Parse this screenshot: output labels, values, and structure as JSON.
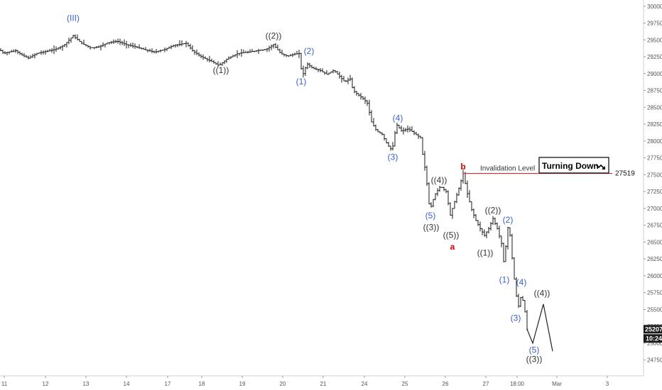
{
  "chart_data": {
    "type": "ohlc",
    "y_ticks": [
      24750,
      25000,
      25250,
      25500,
      25750,
      26000,
      26250,
      26500,
      26750,
      27000,
      27250,
      27500,
      27750,
      28000,
      28250,
      28500,
      28750,
      29000,
      29250,
      29500,
      29750,
      30000
    ],
    "x_ticks": [
      "11",
      "12",
      "13",
      "14",
      "17",
      "18",
      "19",
      "20",
      "21",
      "24",
      "25",
      "26",
      "27",
      "18:00",
      "Mar",
      "3"
    ],
    "ylim": [
      24600,
      30050
    ],
    "price_path": [
      [
        0,
        29350
      ],
      [
        5,
        29300
      ],
      [
        12,
        29320
      ],
      [
        22,
        29340
      ],
      [
        30,
        29280
      ],
      [
        40,
        29230
      ],
      [
        52,
        29300
      ],
      [
        65,
        29330
      ],
      [
        78,
        29360
      ],
      [
        90,
        29420
      ],
      [
        103,
        29560
      ],
      [
        115,
        29450
      ],
      [
        128,
        29380
      ],
      [
        140,
        29400
      ],
      [
        152,
        29460
      ],
      [
        165,
        29480
      ],
      [
        178,
        29430
      ],
      [
        190,
        29400
      ],
      [
        205,
        29350
      ],
      [
        218,
        29320
      ],
      [
        232,
        29360
      ],
      [
        245,
        29420
      ],
      [
        262,
        29450
      ],
      [
        272,
        29330
      ],
      [
        285,
        29240
      ],
      [
        300,
        29170
      ],
      [
        308,
        29120
      ],
      [
        320,
        29220
      ],
      [
        335,
        29300
      ],
      [
        350,
        29320
      ],
      [
        362,
        29340
      ],
      [
        375,
        29360
      ],
      [
        385,
        29430
      ],
      [
        395,
        29300
      ],
      [
        405,
        29260
      ],
      [
        415,
        29290
      ],
      [
        422,
        29300
      ],
      [
        425,
        28960
      ],
      [
        428,
        29020
      ],
      [
        432,
        29150
      ],
      [
        440,
        29080
      ],
      [
        450,
        29050
      ],
      [
        460,
        28990
      ],
      [
        470,
        29050
      ],
      [
        478,
        28960
      ],
      [
        485,
        28880
      ],
      [
        493,
        28920
      ],
      [
        497,
        28750
      ],
      [
        505,
        28680
      ],
      [
        512,
        28620
      ],
      [
        518,
        28550
      ],
      [
        522,
        28300
      ],
      [
        530,
        28150
      ],
      [
        538,
        28100
      ],
      [
        545,
        27950
      ],
      [
        552,
        27860
      ],
      [
        558,
        28250
      ],
      [
        565,
        28150
      ],
      [
        575,
        28180
      ],
      [
        585,
        28100
      ],
      [
        592,
        28050
      ],
      [
        596,
        27720
      ],
      [
        600,
        27500
      ],
      [
        603,
        27100
      ],
      [
        606,
        27000
      ],
      [
        612,
        27200
      ],
      [
        620,
        27330
      ],
      [
        628,
        27250
      ],
      [
        634,
        26900
      ],
      [
        640,
        27100
      ],
      [
        646,
        27300
      ],
      [
        652,
        27520
      ],
      [
        658,
        27220
      ],
      [
        664,
        26980
      ],
      [
        670,
        26820
      ],
      [
        676,
        26700
      ],
      [
        682,
        26600
      ],
      [
        688,
        26700
      ],
      [
        694,
        26850
      ],
      [
        700,
        26700
      ],
      [
        706,
        26480
      ],
      [
        710,
        26120
      ],
      [
        714,
        26750
      ],
      [
        718,
        26600
      ],
      [
        722,
        26150
      ],
      [
        726,
        25750
      ],
      [
        730,
        25550
      ],
      [
        734,
        25720
      ],
      [
        738,
        25550
      ],
      [
        742,
        25207
      ]
    ],
    "projection_path": [
      [
        742,
        25207
      ],
      [
        750,
        25000
      ],
      [
        765,
        25580
      ],
      [
        778,
        24880
      ]
    ],
    "wave_labels": [
      {
        "text": "(III)",
        "x": 103,
        "y": 29780,
        "color": "#3a5fcd",
        "size": 13
      },
      {
        "text": "((1))",
        "x": 311,
        "y": 29010,
        "color": "#333333",
        "size": 12
      },
      {
        "text": "((2))",
        "x": 385,
        "y": 29520,
        "color": "#333333",
        "size": 12
      },
      {
        "text": "(1)",
        "x": 424,
        "y": 28840,
        "color": "#3a5fcd",
        "size": 12
      },
      {
        "text": "(2)",
        "x": 435,
        "y": 29290,
        "color": "#3a5fcd",
        "size": 12
      },
      {
        "text": "(3)",
        "x": 553,
        "y": 27720,
        "color": "#3a5fcd",
        "size": 12
      },
      {
        "text": "(4)",
        "x": 560,
        "y": 28300,
        "color": "#3a5fcd",
        "size": 12
      },
      {
        "text": "((4))",
        "x": 618,
        "y": 27380,
        "color": "#333333",
        "size": 12
      },
      {
        "text": "(5)",
        "x": 606,
        "y": 26850,
        "color": "#3a5fcd",
        "size": 12
      },
      {
        "text": "((3))",
        "x": 607,
        "y": 26680,
        "color": "#333333",
        "size": 12
      },
      {
        "text": "((5))",
        "x": 635,
        "y": 26560,
        "color": "#333333",
        "size": 12
      },
      {
        "text": "a",
        "x": 637,
        "y": 26390,
        "color": "#d50000",
        "size": 13
      },
      {
        "text": "b",
        "x": 652,
        "y": 27580,
        "color": "#d50000",
        "size": 13
      },
      {
        "text": "((2))",
        "x": 694,
        "y": 26930,
        "color": "#333333",
        "size": 12
      },
      {
        "text": "(2)",
        "x": 715,
        "y": 26790,
        "color": "#3a5fcd",
        "size": 12
      },
      {
        "text": "((1))",
        "x": 683,
        "y": 26300,
        "color": "#333333",
        "size": 12
      },
      {
        "text": "(1)",
        "x": 710,
        "y": 25900,
        "color": "#3a5fcd",
        "size": 12
      },
      {
        "text": "(4)",
        "x": 734,
        "y": 25860,
        "color": "#3a5fcd",
        "size": 12
      },
      {
        "text": "((4))",
        "x": 763,
        "y": 25700,
        "color": "#333333",
        "size": 12
      },
      {
        "text": "(3)",
        "x": 726,
        "y": 25330,
        "color": "#3a5fcd",
        "size": 12
      },
      {
        "text": "(5)",
        "x": 752,
        "y": 24860,
        "color": "#3a5fcd",
        "size": 12
      },
      {
        "text": "((3))",
        "x": 752,
        "y": 24720,
        "color": "#333333",
        "size": 12
      }
    ],
    "invalidation": {
      "label": "Invalidation Level",
      "value": 27519,
      "value_label": "27519",
      "color": "#d32f2f"
    },
    "note": {
      "text": "Turning Down"
    },
    "last_price": {
      "value": 25207,
      "label": "25207",
      "timer": "10:24"
    }
  }
}
